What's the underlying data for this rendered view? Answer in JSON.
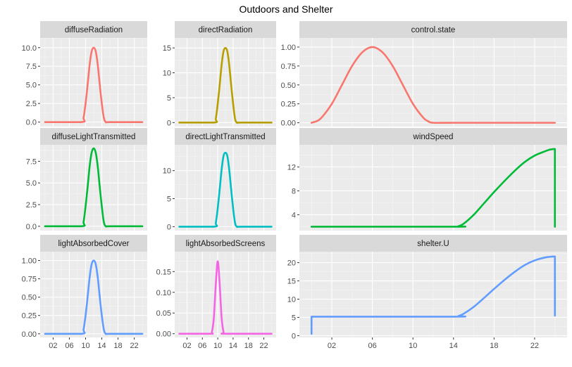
{
  "chart_data": {
    "title": "Outdoors and Shelter",
    "type": "line",
    "panels": [
      {
        "name": "diffuseRadiation",
        "color": "#F8766D",
        "ylim": [
          -0.6,
          11.3
        ],
        "yticks": [
          0,
          2.5,
          5,
          7.5,
          10
        ],
        "ytick_labels": [
          "0.0",
          "2.5",
          "5.0",
          "7.5",
          "10.0"
        ],
        "x": [
          0,
          9,
          9.5,
          10,
          10.5,
          11,
          11.5,
          12,
          12.5,
          13,
          13.5,
          14,
          14.5,
          15,
          16,
          24
        ],
        "y": [
          0,
          0,
          0.6,
          2.5,
          5.0,
          7.7,
          9.5,
          10.0,
          9.5,
          7.7,
          5.0,
          2.5,
          0.6,
          0,
          0,
          0
        ]
      },
      {
        "name": "directRadiation",
        "color": "#B79F00",
        "ylim": [
          -0.8,
          17.0
        ],
        "yticks": [
          0,
          5,
          10,
          15
        ],
        "ytick_labels": [
          "0",
          "5",
          "10",
          "15"
        ],
        "x": [
          0,
          9,
          9.5,
          10,
          10.5,
          11,
          11.5,
          12,
          12.5,
          13,
          13.5,
          14,
          14.5,
          15,
          16,
          24
        ],
        "y": [
          0,
          0,
          0.8,
          3.8,
          7.5,
          11.5,
          14.3,
          15.0,
          14.3,
          11.5,
          7.5,
          3.8,
          0.8,
          0,
          0,
          0
        ]
      },
      {
        "name": "control.state",
        "color": "#F8766D",
        "ylim": [
          -0.05,
          1.12
        ],
        "yticks": [
          0,
          0.25,
          0.5,
          0.75,
          1.0
        ],
        "ytick_labels": [
          "0.00",
          "0.25",
          "0.50",
          "0.75",
          "1.00"
        ],
        "x": [
          0,
          0.5,
          1,
          2,
          3,
          4,
          5,
          6,
          7,
          8,
          9,
          10,
          11,
          11.5,
          12,
          14,
          18,
          22,
          24
        ],
        "y": [
          0.0,
          0.02,
          0.07,
          0.25,
          0.5,
          0.75,
          0.93,
          1.0,
          0.93,
          0.75,
          0.5,
          0.25,
          0.07,
          0.02,
          0.0,
          0.0,
          0.0,
          0.0,
          0.0
        ]
      },
      {
        "name": "diffuseLightTransmitted",
        "color": "#00BA38",
        "ylim": [
          -0.5,
          9.4
        ],
        "yticks": [
          0,
          2.5,
          5,
          7.5
        ],
        "ytick_labels": [
          "0.0",
          "2.5",
          "5.0",
          "7.5"
        ],
        "x": [
          0,
          9,
          9.5,
          10,
          10.5,
          11,
          11.5,
          12,
          12.5,
          13,
          13.5,
          14,
          14.5,
          15,
          16,
          24
        ],
        "y": [
          0,
          0,
          0.5,
          2.3,
          4.5,
          6.9,
          8.5,
          9.0,
          8.5,
          6.9,
          4.5,
          2.3,
          0.5,
          0,
          0,
          0
        ]
      },
      {
        "name": "directLightTransmitted",
        "color": "#00BFC4",
        "ylim": [
          -0.7,
          14.6
        ],
        "yticks": [
          0,
          5,
          10
        ],
        "ytick_labels": [
          "0",
          "5",
          "10"
        ],
        "x": [
          0,
          9,
          9.5,
          10,
          10.5,
          11,
          11.5,
          12,
          12.5,
          13,
          13.5,
          14,
          14.5,
          15,
          16,
          24
        ],
        "y": [
          0,
          0,
          0.7,
          3.3,
          6.6,
          10.1,
          12.6,
          13.2,
          12.6,
          10.1,
          6.6,
          3.3,
          0.7,
          0,
          0,
          0
        ]
      },
      {
        "name": "windSpeed",
        "color": "#00BA38",
        "ylim": [
          1.35,
          15.7
        ],
        "yticks": [
          4,
          8,
          12
        ],
        "ytick_labels": [
          "4",
          "8",
          "12"
        ],
        "x": [
          0,
          14,
          14.5,
          15,
          16,
          17,
          18,
          19,
          20,
          21,
          22,
          23,
          23.5,
          23.9,
          24,
          24
        ],
        "y": [
          2,
          2,
          2.1,
          2.5,
          4.0,
          5.9,
          7.8,
          9.6,
          11.3,
          12.8,
          13.9,
          14.6,
          14.9,
          15.0,
          15.0,
          2
        ]
      },
      {
        "name": "lightAbsorbedCover",
        "color": "#619CFF",
        "ylim": [
          -0.05,
          1.12
        ],
        "yticks": [
          0,
          0.25,
          0.5,
          0.75,
          1.0
        ],
        "ytick_labels": [
          "0.00",
          "0.25",
          "0.50",
          "0.75",
          "1.00"
        ],
        "x": [
          0,
          9,
          9.5,
          10,
          10.5,
          11,
          11.5,
          12,
          12.5,
          13,
          13.5,
          14,
          14.5,
          15,
          16,
          24
        ],
        "y": [
          0,
          0,
          0.06,
          0.25,
          0.5,
          0.77,
          0.95,
          1.0,
          0.95,
          0.77,
          0.5,
          0.25,
          0.06,
          0,
          0,
          0
        ]
      },
      {
        "name": "lightAbsorbedScreens",
        "color": "#F564E3",
        "ylim": [
          -0.009,
          0.198
        ],
        "yticks": [
          0,
          0.05,
          0.1,
          0.15
        ],
        "ytick_labels": [
          "0.00",
          "0.05",
          "0.10",
          "0.15"
        ],
        "x": [
          0,
          8,
          8.5,
          9,
          9.5,
          10,
          10.5,
          11,
          11.5,
          12,
          24
        ],
        "y": [
          0,
          0,
          0.005,
          0.04,
          0.12,
          0.175,
          0.12,
          0.04,
          0.005,
          0,
          0
        ]
      },
      {
        "name": "shelter.U",
        "color": "#619CFF",
        "ylim": [
          -0.5,
          23.0
        ],
        "yticks": [
          0,
          5,
          10,
          15,
          20
        ],
        "ytick_labels": [
          "0",
          "5",
          "10",
          "15",
          "20"
        ],
        "x": [
          0,
          0,
          14,
          14.5,
          15,
          16,
          17,
          18,
          19,
          20,
          21,
          22,
          23,
          23.5,
          23.9,
          24,
          24
        ],
        "y": [
          0.5,
          5.2,
          5.2,
          5.4,
          6.0,
          7.9,
          10.3,
          12.8,
          15.2,
          17.4,
          19.3,
          20.6,
          21.4,
          21.6,
          21.7,
          21.7,
          5.5
        ]
      }
    ],
    "x_axis": {
      "xlim": [
        -1.2,
        25.2
      ],
      "ticks": [
        2,
        6,
        10,
        14,
        18,
        22
      ],
      "tick_labels": [
        "02",
        "06",
        "10",
        "14",
        "18",
        "22"
      ]
    }
  }
}
